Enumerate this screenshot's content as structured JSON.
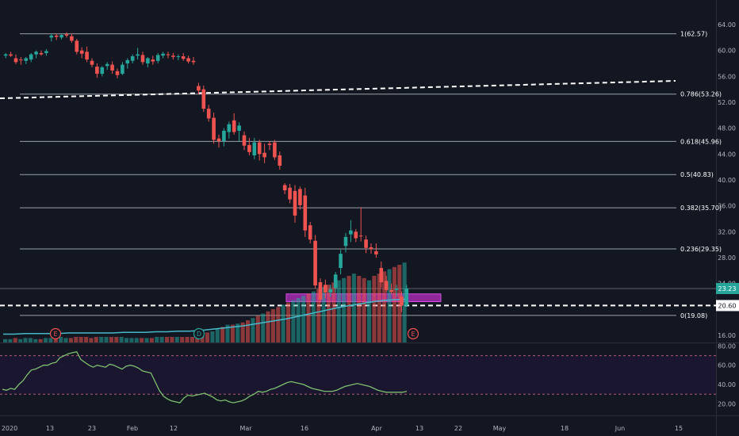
{
  "chart_data": {
    "type": "candlestick",
    "price_axis": {
      "ticks": [
        "64.00",
        "60.00",
        "56.00",
        "52.00",
        "48.00",
        "44.00",
        "40.00",
        "36.00",
        "32.00",
        "28.00",
        "24.00",
        "16.00"
      ],
      "ylim": [
        15,
        65
      ]
    },
    "rsi_axis": {
      "ticks": [
        "80.00",
        "60.00",
        "40.00",
        "20.00"
      ],
      "ylim": [
        12,
        85
      ],
      "upper_band": 70,
      "lower_band": 30
    },
    "time_axis": {
      "ticks": [
        "2020",
        "13",
        "23",
        "Feb",
        "12",
        "Mar",
        "16",
        "Apr",
        "13",
        "22",
        "May",
        "18",
        "Jun",
        "15"
      ]
    },
    "fib_levels": [
      {
        "label": "1(62.57)",
        "value": 62.57
      },
      {
        "label": "0.786(53.26)",
        "value": 53.26
      },
      {
        "label": "0.618(45.96)",
        "value": 45.96
      },
      {
        "label": "0.5(40.83)",
        "value": 40.83
      },
      {
        "label": "0.382(35.70)",
        "value": 35.7
      },
      {
        "label": "0.236(29.35)",
        "value": 29.35
      },
      {
        "label": "0(19.08)",
        "value": 19.08
      }
    ],
    "price_badges": [
      {
        "label": "23.23",
        "value": 23.23,
        "color": "#26a69a"
      },
      {
        "label": "20.60",
        "value": 20.6,
        "color": "#ffffff"
      }
    ],
    "candles": [
      [
        59.2,
        59.6,
        58.8,
        59.4
      ],
      [
        59.4,
        59.8,
        59.0,
        59.2
      ],
      [
        58.8,
        59.4,
        57.9,
        58.2
      ],
      [
        58.6,
        59.0,
        57.8,
        58.5
      ],
      [
        58.4,
        59.0,
        57.9,
        58.8
      ],
      [
        58.6,
        59.6,
        58.2,
        59.4
      ],
      [
        59.4,
        60.0,
        58.8,
        59.8
      ],
      [
        59.6,
        60.0,
        59.2,
        59.4
      ],
      [
        59.6,
        60.2,
        59.2,
        59.9
      ],
      [
        62.0,
        62.6,
        61.4,
        62.3
      ],
      [
        62.3,
        62.6,
        61.6,
        62.1
      ],
      [
        62.0,
        62.5,
        61.7,
        62.4
      ],
      [
        62.5,
        62.8,
        62.0,
        62.3
      ],
      [
        62.2,
        62.6,
        61.2,
        61.5
      ],
      [
        61.5,
        61.8,
        59.4,
        59.8
      ],
      [
        60.0,
        60.5,
        58.8,
        59.5
      ],
      [
        59.8,
        60.6,
        58.2,
        58.6
      ],
      [
        58.4,
        58.8,
        57.4,
        57.8
      ],
      [
        57.5,
        58.0,
        55.8,
        56.4
      ],
      [
        56.4,
        57.6,
        56.0,
        57.4
      ],
      [
        57.6,
        58.2,
        57.0,
        57.9
      ],
      [
        57.8,
        58.3,
        56.4,
        56.9
      ],
      [
        56.8,
        57.2,
        55.7,
        56.2
      ],
      [
        56.4,
        58.2,
        56.2,
        57.8
      ],
      [
        58.0,
        58.8,
        57.2,
        58.5
      ],
      [
        58.4,
        59.4,
        58.0,
        59.1
      ],
      [
        59.2,
        60.4,
        58.6,
        59.4
      ],
      [
        59.3,
        59.8,
        57.8,
        58.2
      ],
      [
        58.0,
        59.0,
        57.4,
        58.8
      ],
      [
        58.6,
        59.2,
        57.8,
        58.3
      ],
      [
        58.4,
        59.6,
        58.0,
        59.3
      ],
      [
        59.2,
        59.8,
        58.8,
        59.5
      ],
      [
        59.4,
        59.8,
        58.8,
        59.3
      ],
      [
        59.2,
        59.6,
        58.6,
        59.0
      ],
      [
        59.0,
        59.4,
        58.5,
        59.1
      ],
      [
        59.1,
        59.6,
        58.4,
        58.7
      ],
      [
        58.8,
        59.2,
        58.0,
        58.3
      ],
      [
        58.4,
        59.0,
        57.8,
        58.2
      ],
      [
        54.5,
        55.0,
        53.2,
        53.8
      ],
      [
        54.0,
        54.6,
        50.5,
        51.0
      ],
      [
        51.0,
        51.6,
        49.0,
        49.5
      ],
      [
        49.6,
        50.4,
        45.6,
        46.2
      ],
      [
        46.4,
        47.0,
        45.0,
        46.0
      ],
      [
        46.0,
        48.0,
        45.2,
        47.6
      ],
      [
        47.4,
        49.0,
        46.4,
        48.6
      ],
      [
        49.2,
        50.3,
        47.0,
        47.4
      ],
      [
        47.6,
        48.9,
        46.0,
        48.4
      ],
      [
        46.9,
        47.5,
        44.6,
        45.3
      ],
      [
        45.4,
        46.5,
        43.8,
        44.3
      ],
      [
        43.8,
        46.5,
        43.2,
        45.8
      ],
      [
        45.8,
        46.2,
        43.0,
        44.0
      ],
      [
        44.2,
        45.6,
        42.6,
        43.5
      ],
      [
        45.6,
        46.0,
        44.6,
        45.4
      ],
      [
        45.8,
        46.2,
        43.1,
        43.5
      ],
      [
        43.8,
        44.4,
        41.6,
        42.2
      ],
      [
        39.2,
        39.5,
        37.8,
        38.4
      ],
      [
        38.8,
        39.4,
        36.4,
        37.0
      ],
      [
        38.3,
        39.2,
        33.4,
        34.5
      ],
      [
        38.6,
        39.0,
        35.4,
        36.1
      ],
      [
        37.6,
        38.8,
        31.2,
        32.2
      ],
      [
        33.0,
        33.5,
        30.2,
        30.8
      ],
      [
        30.6,
        31.5,
        23.2,
        23.7
      ],
      [
        24.2,
        24.8,
        21.0,
        21.5
      ],
      [
        23.8,
        24.6,
        21.7,
        22.6
      ],
      [
        22.6,
        23.8,
        21.9,
        23.1
      ],
      [
        23.3,
        25.8,
        22.6,
        25.4
      ],
      [
        26.4,
        29.2,
        25.4,
        28.6
      ],
      [
        29.8,
        31.8,
        28.8,
        31.2
      ],
      [
        31.6,
        33.8,
        30.4,
        32.2
      ],
      [
        32.0,
        32.4,
        30.4,
        31.0
      ],
      [
        31.4,
        35.8,
        30.5,
        31.3
      ],
      [
        30.8,
        31.4,
        28.7,
        29.5
      ],
      [
        29.6,
        30.2,
        28.6,
        29.3
      ],
      [
        29.0,
        30.2,
        28.0,
        28.5
      ],
      [
        26.4,
        27.4,
        23.4,
        24.2
      ],
      [
        24.4,
        25.2,
        22.6,
        23.0
      ],
      [
        23.0,
        24.0,
        22.4,
        22.7
      ],
      [
        23.0,
        23.8,
        22.0,
        23.2
      ],
      [
        22.0,
        22.8,
        19.6,
        20.6
      ],
      [
        20.6,
        23.8,
        20.4,
        23.23
      ]
    ],
    "volume": [
      {
        "v": [
          3,
          3,
          4,
          3,
          4,
          4,
          3,
          3,
          4,
          4,
          4,
          5,
          4,
          4,
          5,
          5,
          5,
          4,
          5,
          5,
          5,
          5,
          5,
          5,
          4,
          4,
          4,
          4,
          4,
          4,
          5,
          5,
          5,
          5,
          5,
          5,
          5,
          5
        ],
        "up": [
          1,
          1,
          0,
          1,
          1,
          1,
          1,
          0,
          1,
          1,
          0,
          1,
          1,
          0,
          0,
          0,
          0,
          0,
          0,
          1,
          1,
          0,
          0,
          1,
          1,
          1,
          1,
          0,
          1,
          0,
          1,
          1,
          0,
          0,
          1,
          0,
          0,
          0
        ]
      },
      {
        "v": [
          6,
          7,
          9,
          10,
          12,
          14,
          16,
          16,
          17,
          18,
          20,
          22,
          24,
          26,
          28,
          30,
          32,
          34,
          36,
          38,
          40,
          42,
          44,
          46,
          48,
          50,
          52,
          54,
          56,
          58,
          60,
          62,
          60,
          58,
          56,
          60,
          62,
          64,
          66,
          68,
          70,
          72
        ],
        "up": [
          0,
          0,
          0,
          1,
          1,
          0,
          1,
          0,
          1,
          0,
          0,
          1,
          0,
          1,
          0,
          0,
          0,
          1,
          0,
          1,
          1,
          1,
          0,
          1,
          0,
          1,
          0,
          0,
          1,
          1,
          0,
          1,
          0,
          0,
          1,
          0,
          0,
          0,
          1,
          0,
          0,
          1
        ]
      }
    ],
    "volume_ma": [
      14,
      14,
      15,
      15,
      15,
      15,
      16,
      16,
      16,
      16,
      16,
      17,
      17,
      17,
      18,
      18,
      19,
      19,
      20,
      22,
      24,
      26,
      28,
      31,
      34,
      37,
      40,
      44,
      48,
      52,
      56,
      60,
      63,
      66,
      69,
      71,
      72,
      73
    ],
    "rsi": [
      35,
      34,
      36,
      35,
      40,
      44,
      50,
      55,
      56,
      58,
      60,
      60,
      62,
      63,
      68,
      70,
      72,
      73,
      74,
      66,
      63,
      60,
      58,
      60,
      59,
      58,
      61,
      60,
      58,
      56,
      59,
      60,
      59,
      57,
      54,
      53,
      52,
      43,
      34,
      28,
      25,
      23,
      22,
      21,
      26,
      29,
      28,
      29,
      30,
      31,
      29,
      27,
      24,
      23,
      24,
      22,
      21,
      22,
      23,
      25,
      28,
      30,
      33,
      32,
      33,
      35,
      36,
      38,
      40,
      42,
      43,
      42,
      41,
      40,
      38,
      36,
      35,
      34,
      33,
      33,
      33,
      34,
      36,
      38,
      39,
      40,
      41,
      40,
      39,
      38,
      36,
      34,
      33,
      32,
      32,
      32,
      32,
      32,
      33
    ]
  },
  "events": [
    {
      "label": "E",
      "index": 9,
      "color": "#ef5350"
    },
    {
      "label": "D",
      "index": 44,
      "color": "#26a69a"
    },
    {
      "label": "E",
      "index": 77,
      "color": "#ef5350"
    }
  ],
  "colors": {
    "up": "#26a69a",
    "down": "#ef5350",
    "background": "#131722",
    "fib_line": "#9aa0a6",
    "rsi_line": "#7dbf6f",
    "rsi_band": "#1b1630",
    "rsi_band_lines": "#b05a74",
    "zone": "#b82fc3",
    "volume_ma": "#48b8c9"
  }
}
